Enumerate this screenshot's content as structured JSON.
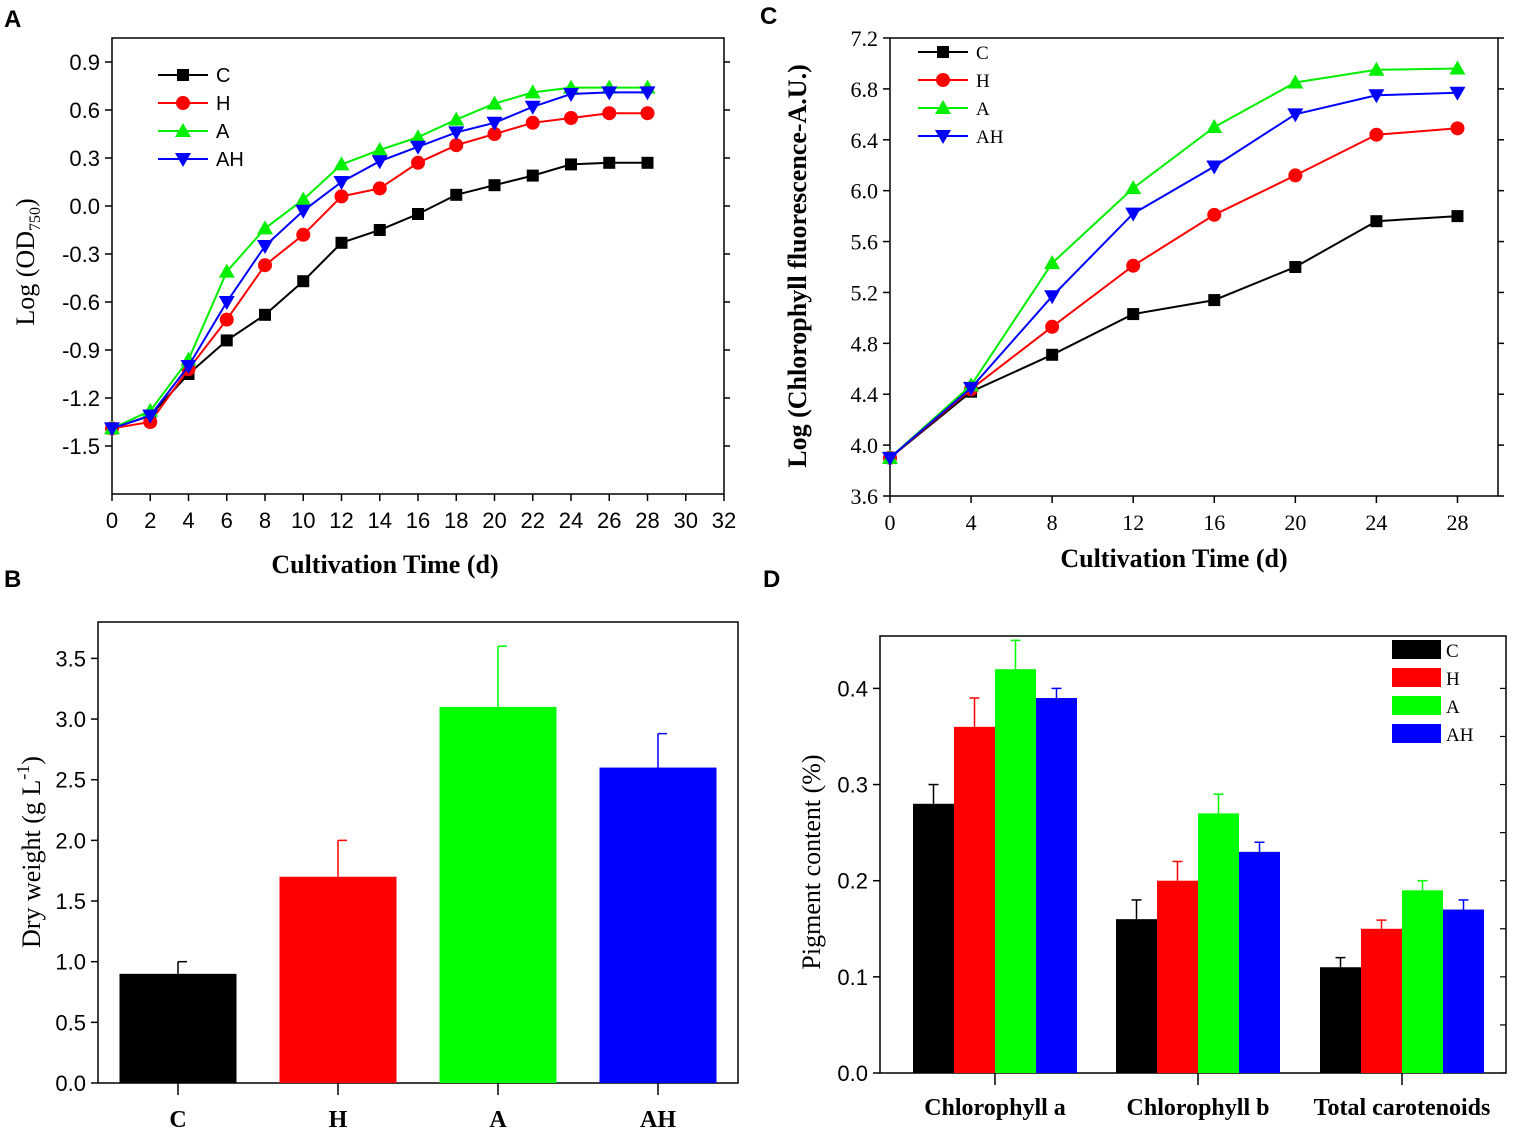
{
  "chart_data": [
    {
      "panel": "A",
      "type": "line",
      "title": "",
      "xlabel": "Cultivation Time (d)",
      "ylabel": "Log (OD",
      "ylabel_sub": "750",
      "ylabel_close": ")",
      "xlim": [
        0,
        32
      ],
      "ylim": [
        -1.8,
        1.05
      ],
      "xticks": [
        0,
        2,
        4,
        6,
        8,
        10,
        12,
        14,
        16,
        18,
        20,
        22,
        24,
        26,
        28,
        30,
        32
      ],
      "yticks": [
        -1.5,
        -1.2,
        -0.9,
        -0.6,
        -0.3,
        0.0,
        0.3,
        0.6,
        0.9
      ],
      "ytick_labels": [
        "-1.5",
        "-1.2",
        "-0.9",
        "-0.6",
        "-0.3",
        "0.0",
        "0.3",
        "0.6",
        "0.9"
      ],
      "x": [
        0,
        2,
        4,
        6,
        8,
        10,
        12,
        14,
        16,
        18,
        20,
        22,
        24,
        26,
        28
      ],
      "legend_position": "top-left",
      "series": [
        {
          "name": "C",
          "color": "#000000",
          "marker": "square",
          "values": [
            -1.39,
            -1.31,
            -1.05,
            -0.84,
            -0.68,
            -0.47,
            -0.23,
            -0.15,
            -0.05,
            0.07,
            0.13,
            0.19,
            0.26,
            0.27,
            0.27
          ]
        },
        {
          "name": "H",
          "color": "#ff0000",
          "marker": "circle",
          "values": [
            -1.39,
            -1.35,
            -1.02,
            -0.71,
            -0.37,
            -0.18,
            0.06,
            0.11,
            0.27,
            0.38,
            0.45,
            0.52,
            0.55,
            0.58,
            0.58
          ]
        },
        {
          "name": "A",
          "color": "#00ee00",
          "marker": "triangle-up",
          "values": [
            -1.39,
            -1.28,
            -0.96,
            -0.41,
            -0.14,
            0.04,
            0.26,
            0.35,
            0.43,
            0.54,
            0.64,
            0.71,
            0.74,
            0.74,
            0.74
          ]
        },
        {
          "name": "AH",
          "color": "#0000ff",
          "marker": "triangle-down",
          "values": [
            -1.39,
            -1.31,
            -1.0,
            -0.6,
            -0.25,
            -0.03,
            0.15,
            0.28,
            0.37,
            0.46,
            0.52,
            0.62,
            0.7,
            0.71,
            0.71
          ]
        }
      ]
    },
    {
      "panel": "C",
      "type": "line",
      "title": "",
      "xlabel": "Cultivation Time (d)",
      "ylabel": "Log (Chlorophyll fluorescence-A.U.)",
      "xlim": [
        0,
        30
      ],
      "ylim": [
        3.6,
        7.2
      ],
      "xticks": [
        0,
        4,
        8,
        12,
        16,
        20,
        24,
        28
      ],
      "yticks": [
        3.6,
        4.0,
        4.4,
        4.8,
        5.2,
        5.6,
        6.0,
        6.4,
        6.8,
        7.2
      ],
      "ytick_labels": [
        "3.6",
        "4.0",
        "4.4",
        "4.8",
        "5.2",
        "5.6",
        "6.0",
        "6.4",
        "6.8",
        "7.2"
      ],
      "x": [
        0,
        4,
        8,
        12,
        16,
        20,
        24,
        28
      ],
      "legend_position": "top-left",
      "series": [
        {
          "name": "C",
          "color": "#000000",
          "marker": "square",
          "values": [
            3.9,
            4.42,
            4.71,
            5.03,
            5.14,
            5.4,
            5.76,
            5.8
          ]
        },
        {
          "name": "H",
          "color": "#ff0000",
          "marker": "circle",
          "values": [
            3.9,
            4.44,
            4.93,
            5.41,
            5.81,
            6.12,
            6.44,
            6.49
          ]
        },
        {
          "name": "A",
          "color": "#00ee00",
          "marker": "triangle-up",
          "values": [
            3.9,
            4.47,
            5.43,
            6.02,
            6.5,
            6.85,
            6.95,
            6.96
          ]
        },
        {
          "name": "AH",
          "color": "#0000ff",
          "marker": "triangle-down",
          "values": [
            3.9,
            4.45,
            5.17,
            5.82,
            6.19,
            6.6,
            6.75,
            6.77
          ]
        }
      ]
    },
    {
      "panel": "B",
      "type": "bar",
      "title": "",
      "xlabel": "",
      "ylabel": "Dry weight (g L",
      "ylabel_sup": "-1",
      "ylabel_close": ")",
      "ylim": [
        0,
        3.8
      ],
      "yticks": [
        0.0,
        0.5,
        1.0,
        1.5,
        2.0,
        2.5,
        3.0,
        3.5
      ],
      "ytick_labels": [
        "0.0",
        "0.5",
        "1.0",
        "1.5",
        "2.0",
        "2.5",
        "3.0",
        "3.5"
      ],
      "categories": [
        "C",
        "H",
        "A",
        "AH"
      ],
      "colors": [
        "#000000",
        "#ff0000",
        "#00ff00",
        "#0000ff"
      ],
      "values": [
        0.9,
        1.7,
        3.1,
        2.6
      ],
      "errors": [
        0.1,
        0.3,
        0.5,
        0.28
      ]
    },
    {
      "panel": "D",
      "type": "bar",
      "title": "",
      "xlabel": "",
      "ylabel": "Pigment content (%)",
      "ylim": [
        0,
        0.4545
      ],
      "yticks": [
        0.0,
        0.1,
        0.2,
        0.3,
        0.4
      ],
      "ytick_labels": [
        "0.0",
        "0.1",
        "0.2",
        "0.3",
        "0.4"
      ],
      "categories": [
        "Chlorophyll a",
        "Chlorophyll b",
        "Total carotenoids"
      ],
      "legend_position": "top-right",
      "series": [
        {
          "name": "C",
          "color": "#000000",
          "values": [
            0.28,
            0.16,
            0.11
          ],
          "errors": [
            0.02,
            0.02,
            0.01
          ]
        },
        {
          "name": "H",
          "color": "#ff0000",
          "values": [
            0.36,
            0.2,
            0.15
          ],
          "errors": [
            0.03,
            0.02,
            0.009
          ]
        },
        {
          "name": "A",
          "color": "#00ff00",
          "values": [
            0.42,
            0.27,
            0.19
          ],
          "errors": [
            0.03,
            0.02,
            0.01
          ]
        },
        {
          "name": "AH",
          "color": "#0000ff",
          "values": [
            0.39,
            0.23,
            0.17
          ],
          "errors": [
            0.01,
            0.01,
            0.01
          ]
        }
      ]
    }
  ]
}
